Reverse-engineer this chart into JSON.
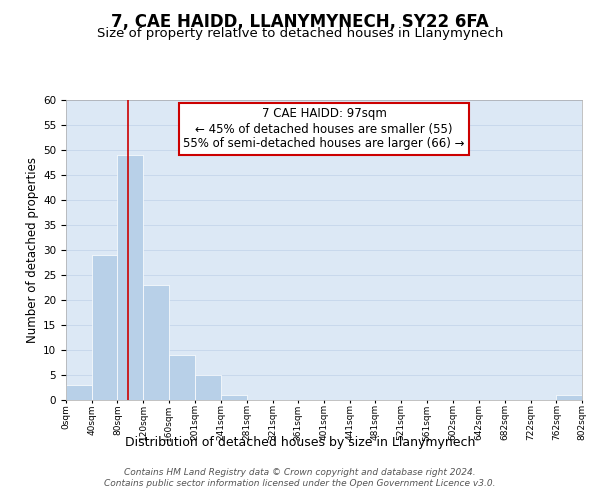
{
  "title": "7, CAE HAIDD, LLANYMYNECH, SY22 6FA",
  "subtitle": "Size of property relative to detached houses in Llanymynech",
  "xlabel": "Distribution of detached houses by size in Llanymynech",
  "ylabel": "Number of detached properties",
  "bar_edges": [
    0,
    40,
    80,
    120,
    160,
    201,
    241,
    281,
    321,
    361,
    401,
    441,
    481,
    521,
    561,
    602,
    642,
    682,
    722,
    762,
    802
  ],
  "bar_heights": [
    3,
    29,
    49,
    23,
    9,
    5,
    1,
    0,
    0,
    0,
    0,
    0,
    0,
    0,
    0,
    0,
    0,
    0,
    0,
    1
  ],
  "tick_labels": [
    "0sqm",
    "40sqm",
    "80sqm",
    "120sqm",
    "160sqm",
    "201sqm",
    "241sqm",
    "281sqm",
    "321sqm",
    "361sqm",
    "401sqm",
    "441sqm",
    "481sqm",
    "521sqm",
    "561sqm",
    "602sqm",
    "642sqm",
    "682sqm",
    "722sqm",
    "762sqm",
    "802sqm"
  ],
  "bar_color": "#b8d0e8",
  "property_line_x": 97,
  "property_line_color": "#cc0000",
  "annotation_line1": "7 CAE HAIDD: 97sqm",
  "annotation_line2": "← 45% of detached houses are smaller (55)",
  "annotation_line3": "55% of semi-detached houses are larger (66) →",
  "ylim": [
    0,
    60
  ],
  "yticks": [
    0,
    5,
    10,
    15,
    20,
    25,
    30,
    35,
    40,
    45,
    50,
    55,
    60
  ],
  "grid_color": "#c8d8ec",
  "background_color": "#dce8f5",
  "footer_text": "Contains HM Land Registry data © Crown copyright and database right 2024.\nContains public sector information licensed under the Open Government Licence v3.0.",
  "title_fontsize": 12,
  "subtitle_fontsize": 9.5,
  "xlabel_fontsize": 9,
  "ylabel_fontsize": 8.5,
  "annotation_fontsize": 8.5,
  "footer_fontsize": 6.5
}
